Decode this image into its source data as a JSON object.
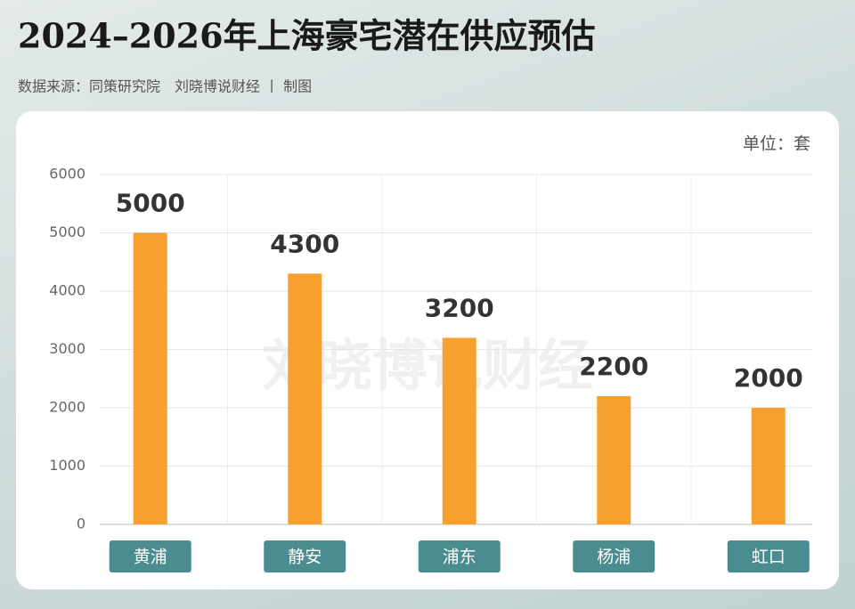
{
  "chart_data": {
    "type": "bar",
    "title": "2024–2026年上海豪宅潜在供应预估",
    "subtitle": "数据来源：同策研究院　刘晓博说财经 丨 制图",
    "unit": "单位：套",
    "watermark": "刘晓博说财经",
    "categories": [
      "黄浦",
      "静安",
      "浦东",
      "杨浦",
      "虹口"
    ],
    "values": [
      5000,
      4300,
      3200,
      2200,
      2000
    ],
    "color": "#f7a030",
    "ylim": [
      0,
      6000
    ],
    "yticks": [
      0,
      1000,
      2000,
      3000,
      4000,
      5000,
      6000
    ],
    "grid": true
  }
}
